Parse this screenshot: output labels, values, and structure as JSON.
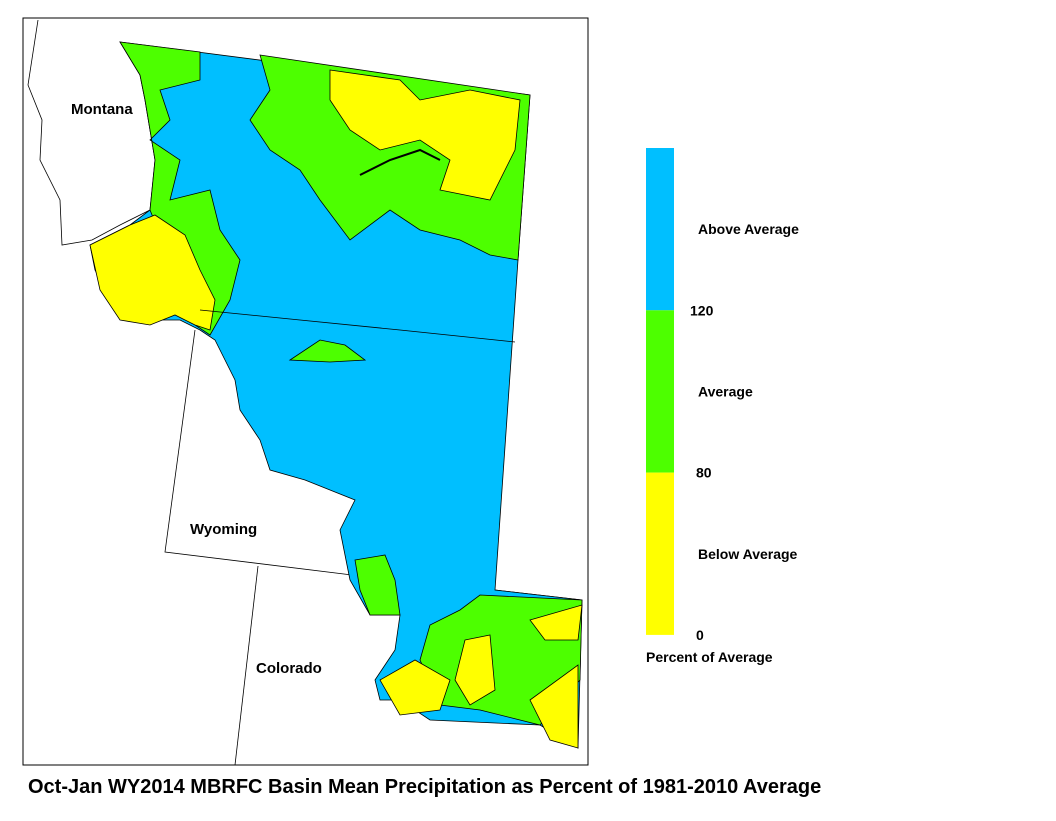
{
  "map": {
    "title": "Oct-Jan WY2014 MBRFC Basin Mean Precipitation as Percent of 1981-2010 Average",
    "state_labels": [
      "Montana",
      "Wyoming",
      "Colorado"
    ],
    "legend": {
      "title": "Percent of Average",
      "classes": [
        {
          "label": "Above Average",
          "color": "#00bfff"
        },
        {
          "label": "Average",
          "color": "#4dff00"
        },
        {
          "label": "Below Average",
          "color": "#ffff00"
        }
      ],
      "breaks": [
        120,
        80,
        0
      ]
    }
  }
}
